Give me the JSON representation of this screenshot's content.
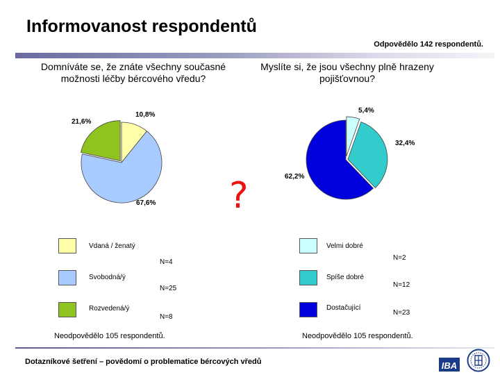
{
  "title": "Informovanost respondentů",
  "respondents": "Odpovědělo 142 respondentů.",
  "footer": "Dotazníkové šetření – povědomí o problematice bércových vředů",
  "question_mark": "?",
  "logo_text": "IBA",
  "colors": {
    "light_yellow": "#ffffaa",
    "light_blue": "#a8ccff",
    "green": "#8fc31f",
    "pale_cyan": "#ccffff",
    "turquoise": "#33cccc",
    "dark_blue": "#0000dd",
    "question_red": "#ee1111",
    "logo_blue": "#1a3a8a"
  },
  "chart_data": [
    {
      "type": "pie",
      "title": "Domníváte se, že znáte všechny současné možnosti léčby bércového vředu?",
      "slices": [
        {
          "label": "10,8%",
          "value": 10.8,
          "color": "#ffffaa",
          "legend": "Vdaná / ženatý",
          "n": "N=4"
        },
        {
          "label": "67,6%",
          "value": 67.6,
          "color": "#a8ccff",
          "legend": "Svobodná/ý",
          "n": "N=25"
        },
        {
          "label": "21,6%",
          "value": 21.6,
          "color": "#8fc31f",
          "legend": "Rozvedená/ý",
          "n": "N=8"
        }
      ],
      "note": "Neodpovědělo 105 respondentů."
    },
    {
      "type": "pie",
      "title": "Myslíte si, že jsou všechny plně hrazeny pojišťovnou?",
      "slices": [
        {
          "label": "5,4%",
          "value": 5.4,
          "color": "#ccffff",
          "legend": "Velmi dobré",
          "n": "N=2"
        },
        {
          "label": "32,4%",
          "value": 32.4,
          "color": "#33cccc",
          "legend": "Spíše dobré",
          "n": "N=12"
        },
        {
          "label": "62,2%",
          "value": 62.2,
          "color": "#0000dd",
          "legend": "Dostačující",
          "n": "N=23"
        }
      ],
      "note": "Neodpovědělo 105 respondentů."
    }
  ]
}
